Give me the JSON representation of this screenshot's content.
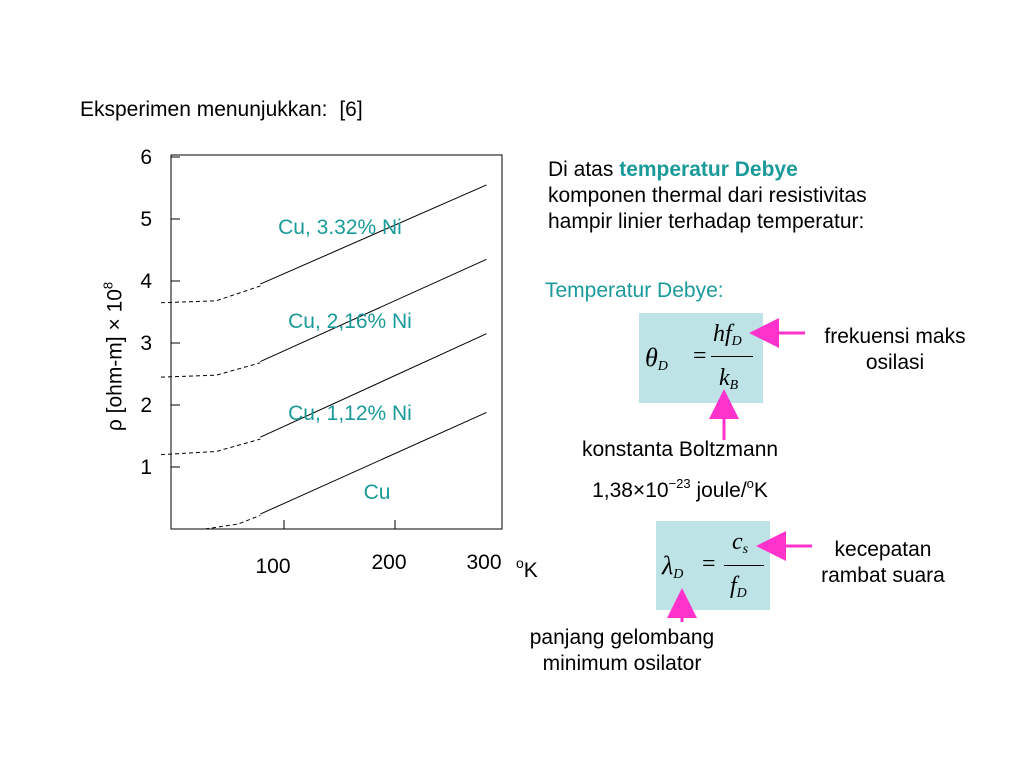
{
  "heading": "Eksperimen menunjukkan:",
  "ref": "[6]",
  "chart_data": {
    "type": "line",
    "ylabel": "ρ [ohm-m] × 10",
    "ylabel_exp": "8",
    "xunit": "oK",
    "xlim": [
      0,
      300
    ],
    "ylim": [
      0,
      6
    ],
    "xticks": [
      100,
      200,
      300
    ],
    "yticks": [
      1,
      2,
      3,
      4,
      5,
      6
    ],
    "series": [
      {
        "name": "Cu, 3.32% Ni",
        "dashed": [
          [
            0,
            3.65
          ],
          [
            50,
            3.68
          ],
          [
            90,
            3.92
          ]
        ],
        "solid": [
          [
            90,
            3.95
          ],
          [
            295,
            5.55
          ]
        ]
      },
      {
        "name": "Cu, 2,16% Ni",
        "dashed": [
          [
            0,
            2.45
          ],
          [
            50,
            2.48
          ],
          [
            90,
            2.68
          ]
        ],
        "solid": [
          [
            90,
            2.7
          ],
          [
            295,
            4.35
          ]
        ]
      },
      {
        "name": "Cu, 1,12% Ni",
        "dashed": [
          [
            0,
            1.2
          ],
          [
            50,
            1.25
          ],
          [
            90,
            1.45
          ]
        ],
        "solid": [
          [
            90,
            1.48
          ],
          [
            295,
            3.15
          ]
        ]
      },
      {
        "name": "Cu",
        "dashed": [
          [
            40,
            0.0
          ],
          [
            70,
            0.08
          ],
          [
            90,
            0.22
          ]
        ],
        "solid": [
          [
            90,
            0.24
          ],
          [
            295,
            1.88
          ]
        ]
      }
    ]
  },
  "right": {
    "intro_prefix": "Di atas ",
    "intro_highlight": "temperatur Debye",
    "intro_line2": "komponen thermal dari resistivitas",
    "intro_line3": "hampir linier terhadap temperatur:",
    "debye_heading": "Temperatur Debye:",
    "f1_label_1": "frekuensi maks",
    "f1_label_2": "osilasi",
    "boltz_1": "konstanta Boltzmann",
    "boltz_2_pre": "1,38×10",
    "boltz_2_exp": "−23",
    "boltz_2_post": " joule/",
    "boltz_2_sup": "o",
    "boltz_2_end": "K",
    "f2_label_1": "kecepatan",
    "f2_label_2": "rambat suara",
    "f3_label_1": "panjang gelombang",
    "f3_label_2": "minimum osilator"
  },
  "colors": {
    "teal": "#1a9a9a",
    "arrow": "#ff33cc",
    "box": "#bde3e6"
  }
}
